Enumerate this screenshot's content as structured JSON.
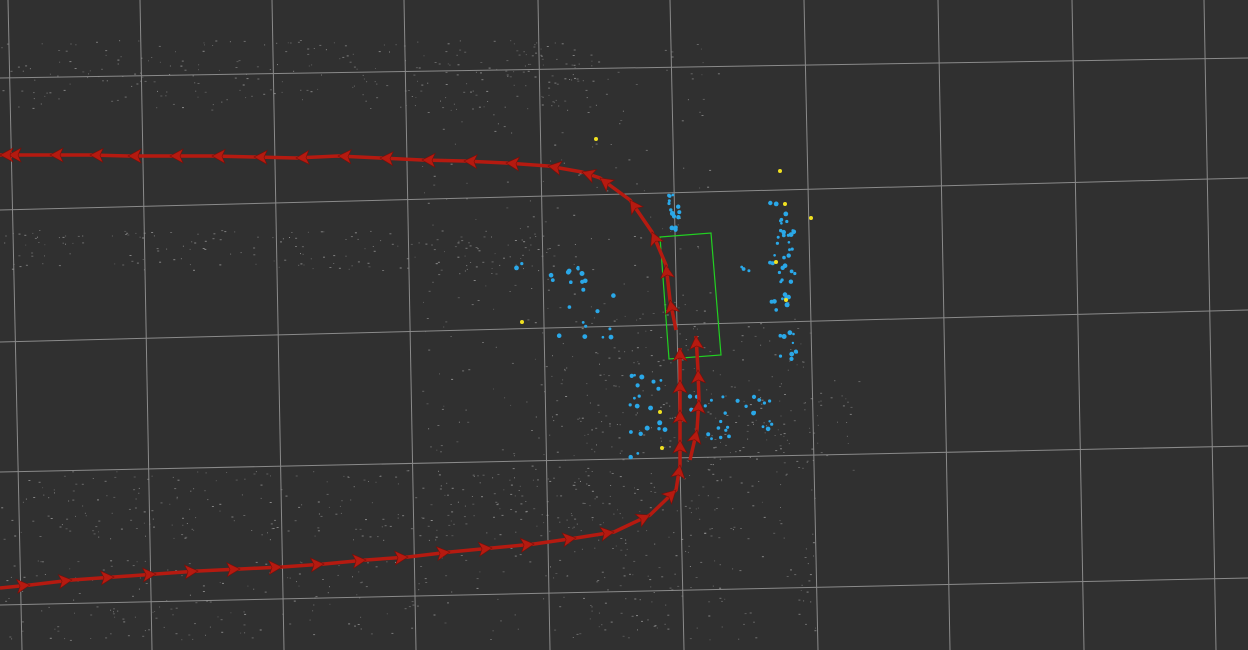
{
  "view": {
    "background": "#303030",
    "grid_color": "#a8a8a8",
    "trajectory_color": "#b51a10",
    "arrow_color": "#b51a10",
    "box_color": "#22d022",
    "cloud_color": "#9a9a9a",
    "obstacle_color": "#2aa8e8",
    "marker_color": "#f0e020"
  }
}
